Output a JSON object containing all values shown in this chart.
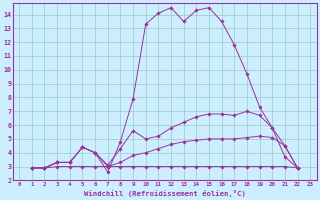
{
  "xlabel": "Windchill (Refroidissement éolien,°C)",
  "bg_color": "#cceeff",
  "grid_color": "#99ccbb",
  "line_color": "#993399",
  "spine_color": "#993399",
  "xlim": [
    -0.5,
    23.5
  ],
  "ylim": [
    2,
    14.8
  ],
  "xticks": [
    0,
    1,
    2,
    3,
    4,
    5,
    6,
    7,
    8,
    9,
    10,
    11,
    12,
    13,
    14,
    15,
    16,
    17,
    18,
    19,
    20,
    21,
    22,
    23
  ],
  "yticks": [
    2,
    3,
    4,
    5,
    6,
    7,
    8,
    9,
    10,
    11,
    12,
    13,
    14
  ],
  "series": [
    {
      "x": [
        1,
        2,
        3,
        4,
        5,
        6,
        7,
        8,
        9,
        10,
        11,
        12,
        13,
        14,
        15,
        16,
        17,
        18,
        19,
        20,
        21,
        22
      ],
      "y": [
        2.9,
        2.9,
        3.3,
        3.3,
        4.4,
        4.0,
        2.6,
        4.8,
        7.9,
        13.3,
        14.1,
        14.5,
        13.5,
        14.3,
        14.5,
        13.5,
        11.8,
        9.7,
        7.3,
        5.8,
        3.7,
        2.9
      ]
    },
    {
      "x": [
        1,
        2,
        3,
        4,
        5,
        6,
        7,
        8,
        9,
        10,
        11,
        12,
        13,
        14,
        15,
        16,
        17,
        18,
        19,
        20,
        21,
        22
      ],
      "y": [
        2.9,
        2.9,
        3.3,
        3.3,
        4.4,
        4.0,
        3.1,
        4.3,
        5.6,
        5.0,
        5.2,
        5.8,
        6.2,
        6.6,
        6.8,
        6.8,
        6.7,
        7.0,
        6.7,
        5.8,
        4.5,
        2.9
      ]
    },
    {
      "x": [
        1,
        2,
        3,
        4,
        5,
        6,
        7,
        8,
        9,
        10,
        11,
        12,
        13,
        14,
        15,
        16,
        17,
        18,
        19,
        20,
        21,
        22
      ],
      "y": [
        2.9,
        2.9,
        3.0,
        3.0,
        3.0,
        3.0,
        3.0,
        3.0,
        3.0,
        3.0,
        3.0,
        3.0,
        3.0,
        3.0,
        3.0,
        3.0,
        3.0,
        3.0,
        3.0,
        3.0,
        3.0,
        2.9
      ]
    },
    {
      "x": [
        1,
        2,
        3,
        4,
        5,
        6,
        7,
        8,
        9,
        10,
        11,
        12,
        13,
        14,
        15,
        16,
        17,
        18,
        19,
        20,
        21,
        22
      ],
      "y": [
        2.9,
        2.9,
        3.3,
        3.3,
        4.4,
        4.0,
        3.0,
        3.3,
        3.8,
        4.0,
        4.3,
        4.6,
        4.8,
        4.9,
        5.0,
        5.0,
        5.0,
        5.1,
        5.2,
        5.1,
        4.5,
        2.9
      ]
    }
  ]
}
